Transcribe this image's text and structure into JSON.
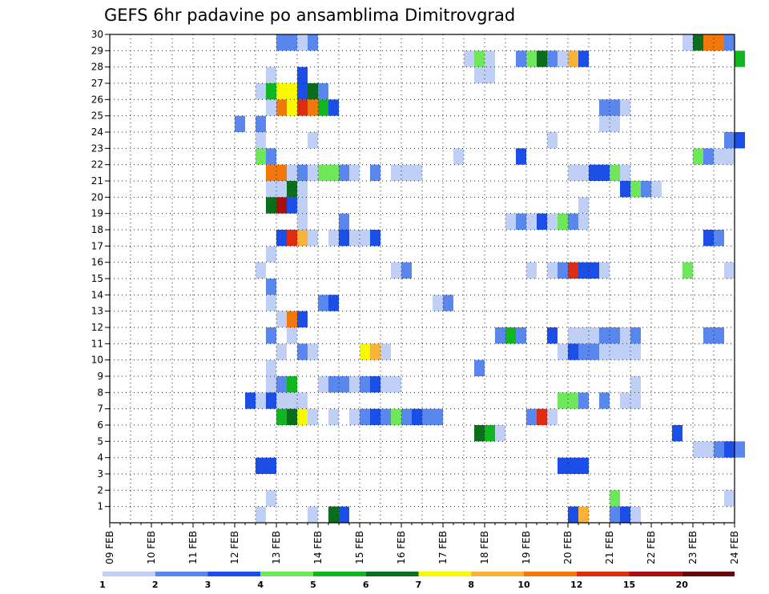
{
  "chart_data": {
    "type": "heatmap",
    "title": "GEFS 6hr padavine po ansamblima Dimitrovgrad",
    "xlabel": "",
    "ylabel": "",
    "x_ticks": [
      "09 FEB",
      "10 FEB",
      "11 FEB",
      "12 FEB",
      "13 FEB",
      "14 FEB",
      "15 FEB",
      "16 FEB",
      "17 FEB",
      "18 FEB",
      "19 FEB",
      "20 FEB",
      "21 FEB",
      "22 FEB",
      "23 FEB",
      "24 FEB"
    ],
    "y_ticks": [
      1,
      2,
      3,
      4,
      5,
      6,
      7,
      8,
      9,
      10,
      11,
      12,
      13,
      14,
      15,
      16,
      17,
      18,
      19,
      20,
      21,
      22,
      23,
      24,
      25,
      26,
      27,
      28,
      29,
      30
    ],
    "ylim": [
      0,
      30
    ],
    "grid": true,
    "time_step": "6hr",
    "levels": [
      1,
      2,
      3,
      4,
      5,
      6,
      7,
      8,
      10,
      12,
      15,
      20
    ],
    "level_labels": [
      "1",
      "2",
      "3",
      "4",
      "5",
      "6",
      "7",
      "8",
      "10",
      "12",
      "15",
      "20"
    ],
    "colors": [
      "#bfcff5",
      "#5a87ee",
      "#1a4ee6",
      "#6ee85a",
      "#10b620",
      "#0a6e1c",
      "#f8f800",
      "#f8b238",
      "#f2780c",
      "#de2c10",
      "#a80f0f",
      "#660808"
    ],
    "cells": [
      {
        "member": 30,
        "entries": [
          [
            "13 FEB 00",
            2
          ],
          [
            "13 FEB 06",
            2
          ],
          [
            "13 FEB 12",
            1
          ],
          [
            "13 FEB 18",
            2
          ],
          [
            "13 FEB 00",
            2
          ],
          [
            "22 FEB 18",
            1
          ],
          [
            "23 FEB 00",
            6
          ],
          [
            "23 FEB 06",
            9
          ],
          [
            "23 FEB 12",
            9
          ],
          [
            "23 FEB 18",
            2
          ]
        ]
      },
      {
        "member": 29,
        "entries": [
          [
            "17 FEB 12",
            1
          ],
          [
            "17 FEB 18",
            4
          ],
          [
            "18 FEB 00",
            1
          ],
          [
            "18 FEB 18",
            2
          ],
          [
            "19 FEB 00",
            4
          ],
          [
            "19 FEB 06",
            6
          ],
          [
            "19 FEB 12",
            2
          ],
          [
            "19 FEB 18",
            1
          ],
          [
            "20 FEB 00",
            8
          ],
          [
            "20 FEB 06",
            3
          ],
          [
            "24 FEB 00",
            5
          ]
        ]
      },
      {
        "member": 28,
        "entries": [
          [
            "12 FEB 18",
            1
          ],
          [
            "13 FEB 12",
            3
          ],
          [
            "17 FEB 18",
            1
          ],
          [
            "18 FEB 00",
            1
          ]
        ]
      },
      {
        "member": 27,
        "entries": [
          [
            "12 FEB 12",
            1
          ],
          [
            "12 FEB 18",
            5
          ],
          [
            "13 FEB 00",
            7
          ],
          [
            "13 FEB 06",
            7
          ],
          [
            "13 FEB 12",
            3
          ],
          [
            "13 FEB 18",
            6
          ],
          [
            "14 FEB 00",
            2
          ]
        ]
      },
      {
        "member": 26,
        "entries": [
          [
            "12 FEB 18",
            1
          ],
          [
            "13 FEB 00",
            9
          ],
          [
            "13 FEB 06",
            7
          ],
          [
            "13 FEB 12",
            10
          ],
          [
            "13 FEB 18",
            9
          ],
          [
            "14 FEB 00",
            5
          ],
          [
            "14 FEB 06",
            3
          ],
          [
            "20 FEB 18",
            2
          ],
          [
            "21 FEB 00",
            2
          ],
          [
            "21 FEB 06",
            1
          ]
        ]
      },
      {
        "member": 25,
        "entries": [
          [
            "12 FEB 00",
            2
          ],
          [
            "12 FEB 12",
            2
          ],
          [
            "20 FEB 18",
            1
          ],
          [
            "21 FEB 00",
            1
          ]
        ]
      },
      {
        "member": 24,
        "entries": [
          [
            "12 FEB 12",
            1
          ],
          [
            "13 FEB 18",
            1
          ],
          [
            "19 FEB 12",
            1
          ],
          [
            "23 FEB 18",
            2
          ],
          [
            "24 FEB 00",
            3
          ]
        ]
      },
      {
        "member": 23,
        "entries": [
          [
            "12 FEB 12",
            4
          ],
          [
            "12 FEB 18",
            2
          ],
          [
            "17 FEB 06",
            1
          ],
          [
            "18 FEB 18",
            3
          ],
          [
            "23 FEB 00",
            4
          ],
          [
            "23 FEB 06",
            2
          ],
          [
            "23 FEB 12",
            1
          ],
          [
            "23 FEB 18",
            1
          ]
        ]
      },
      {
        "member": 22,
        "entries": [
          [
            "12 FEB 18",
            9
          ],
          [
            "13 FEB 00",
            9
          ],
          [
            "13 FEB 06",
            1
          ],
          [
            "13 FEB 12",
            2
          ],
          [
            "13 FEB 18",
            1
          ],
          [
            "14 FEB 00",
            4
          ],
          [
            "14 FEB 06",
            4
          ],
          [
            "14 FEB 12",
            2
          ],
          [
            "14 FEB 18",
            1
          ],
          [
            "15 FEB 06",
            2
          ],
          [
            "15 FEB 18",
            1
          ],
          [
            "16 FEB 00",
            1
          ],
          [
            "16 FEB 06",
            1
          ],
          [
            "20 FEB 00",
            1
          ],
          [
            "20 FEB 06",
            1
          ],
          [
            "20 FEB 12",
            3
          ],
          [
            "20 FEB 18",
            3
          ],
          [
            "21 FEB 00",
            4
          ],
          [
            "21 FEB 06",
            1
          ]
        ]
      },
      {
        "member": 21,
        "entries": [
          [
            "12 FEB 18",
            1
          ],
          [
            "13 FEB 00",
            1
          ],
          [
            "13 FEB 06",
            6
          ],
          [
            "13 FEB 12",
            1
          ],
          [
            "21 FEB 06",
            3
          ],
          [
            "21 FEB 12",
            4
          ],
          [
            "21 FEB 18",
            2
          ],
          [
            "22 FEB 00",
            1
          ]
        ]
      },
      {
        "member": 20,
        "entries": [
          [
            "12 FEB 18",
            6
          ],
          [
            "13 FEB 00",
            11
          ],
          [
            "13 FEB 06",
            3
          ],
          [
            "13 FEB 12",
            1
          ],
          [
            "20 FEB 06",
            1
          ]
        ]
      },
      {
        "member": 19,
        "entries": [
          [
            "13 FEB 12",
            1
          ],
          [
            "14 FEB 12",
            2
          ],
          [
            "18 FEB 12",
            1
          ],
          [
            "18 FEB 18",
            2
          ],
          [
            "19 FEB 00",
            1
          ],
          [
            "19 FEB 06",
            3
          ],
          [
            "19 FEB 12",
            1
          ],
          [
            "19 FEB 18",
            4
          ],
          [
            "20 FEB 00",
            2
          ],
          [
            "20 FEB 06",
            1
          ]
        ]
      },
      {
        "member": 18,
        "entries": [
          [
            "13 FEB 00",
            3
          ],
          [
            "13 FEB 06",
            10
          ],
          [
            "13 FEB 12",
            8
          ],
          [
            "13 FEB 18",
            1
          ],
          [
            "14 FEB 06",
            1
          ],
          [
            "14 FEB 12",
            3
          ],
          [
            "14 FEB 18",
            1
          ],
          [
            "15 FEB 00",
            1
          ],
          [
            "15 FEB 06",
            3
          ],
          [
            "23 FEB 06",
            3
          ],
          [
            "23 FEB 12",
            2
          ]
        ]
      },
      {
        "member": 17,
        "entries": [
          [
            "12 FEB 18",
            1
          ]
        ]
      },
      {
        "member": 16,
        "entries": [
          [
            "12 FEB 12",
            1
          ],
          [
            "15 FEB 18",
            1
          ],
          [
            "16 FEB 00",
            2
          ],
          [
            "19 FEB 00",
            1
          ],
          [
            "19 FEB 12",
            1
          ],
          [
            "19 FEB 18",
            2
          ],
          [
            "20 FEB 00",
            10
          ],
          [
            "20 FEB 06",
            3
          ],
          [
            "20 FEB 12",
            3
          ],
          [
            "20 FEB 18",
            1
          ],
          [
            "22 FEB 18",
            4
          ],
          [
            "23 FEB 18",
            1
          ]
        ]
      },
      {
        "member": 15,
        "entries": [
          [
            "12 FEB 18",
            2
          ]
        ]
      },
      {
        "member": 14,
        "entries": [
          [
            "12 FEB 18",
            1
          ],
          [
            "14 FEB 00",
            2
          ],
          [
            "14 FEB 06",
            3
          ],
          [
            "16 FEB 18",
            1
          ],
          [
            "17 FEB 00",
            2
          ]
        ]
      },
      {
        "member": 13,
        "entries": [
          [
            "13 FEB 00",
            1
          ],
          [
            "13 FEB 06",
            9
          ],
          [
            "13 FEB 12",
            3
          ]
        ]
      },
      {
        "member": 12,
        "entries": [
          [
            "12 FEB 18",
            2
          ],
          [
            "13 FEB 06",
            1
          ],
          [
            "18 FEB 06",
            2
          ],
          [
            "18 FEB 12",
            5
          ],
          [
            "18 FEB 18",
            2
          ],
          [
            "19 FEB 12",
            3
          ],
          [
            "20 FEB 00",
            1
          ],
          [
            "20 FEB 06",
            1
          ],
          [
            "20 FEB 12",
            1
          ],
          [
            "20 FEB 18",
            2
          ],
          [
            "21 FEB 00",
            2
          ],
          [
            "21 FEB 06",
            1
          ],
          [
            "21 FEB 12",
            2
          ],
          [
            "23 FEB 06",
            2
          ],
          [
            "23 FEB 12",
            2
          ]
        ]
      },
      {
        "member": 11,
        "entries": [
          [
            "13 FEB 00",
            1
          ],
          [
            "13 FEB 12",
            2
          ],
          [
            "13 FEB 18",
            1
          ],
          [
            "15 FEB 00",
            7
          ],
          [
            "15 FEB 06",
            8
          ],
          [
            "15 FEB 12",
            1
          ],
          [
            "19 FEB 18",
            1
          ],
          [
            "20 FEB 00",
            3
          ],
          [
            "20 FEB 06",
            2
          ],
          [
            "20 FEB 12",
            2
          ],
          [
            "20 FEB 18",
            1
          ],
          [
            "21 FEB 00",
            1
          ],
          [
            "21 FEB 06",
            1
          ],
          [
            "21 FEB 12",
            1
          ]
        ]
      },
      {
        "member": 10,
        "entries": [
          [
            "12 FEB 18",
            1
          ],
          [
            "17 FEB 18",
            2
          ]
        ]
      },
      {
        "member": 9,
        "entries": [
          [
            "12 FEB 18",
            1
          ],
          [
            "13 FEB 00",
            2
          ],
          [
            "13 FEB 06",
            5
          ],
          [
            "14 FEB 00",
            1
          ],
          [
            "14 FEB 06",
            2
          ],
          [
            "14 FEB 12",
            2
          ],
          [
            "14 FEB 18",
            1
          ],
          [
            "15 FEB 00",
            2
          ],
          [
            "15 FEB 06",
            3
          ],
          [
            "15 FEB 12",
            1
          ],
          [
            "15 FEB 18",
            1
          ],
          [
            "21 FEB 12",
            1
          ]
        ]
      },
      {
        "member": 8,
        "entries": [
          [
            "12 FEB 06",
            3
          ],
          [
            "12 FEB 12",
            1
          ],
          [
            "12 FEB 18",
            3
          ],
          [
            "13 FEB 00",
            1
          ],
          [
            "13 FEB 06",
            1
          ],
          [
            "13 FEB 12",
            1
          ],
          [
            "19 FEB 18",
            4
          ],
          [
            "20 FEB 00",
            4
          ],
          [
            "20 FEB 06",
            2
          ],
          [
            "20 FEB 18",
            2
          ],
          [
            "21 FEB 06",
            1
          ],
          [
            "21 FEB 12",
            1
          ]
        ]
      },
      {
        "member": 7,
        "entries": [
          [
            "13 FEB 00",
            5
          ],
          [
            "13 FEB 06",
            6
          ],
          [
            "13 FEB 12",
            7
          ],
          [
            "13 FEB 18",
            1
          ],
          [
            "14 FEB 06",
            1
          ],
          [
            "14 FEB 18",
            1
          ],
          [
            "15 FEB 00",
            2
          ],
          [
            "15 FEB 06",
            3
          ],
          [
            "15 FEB 12",
            2
          ],
          [
            "15 FEB 18",
            4
          ],
          [
            "16 FEB 00",
            2
          ],
          [
            "16 FEB 06",
            3
          ],
          [
            "16 FEB 12",
            2
          ],
          [
            "16 FEB 18",
            2
          ],
          [
            "19 FEB 00",
            2
          ],
          [
            "19 FEB 06",
            10
          ],
          [
            "19 FEB 12",
            1
          ]
        ]
      },
      {
        "member": 6,
        "entries": [
          [
            "17 FEB 18",
            6
          ],
          [
            "18 FEB 00",
            5
          ],
          [
            "18 FEB 06",
            1
          ],
          [
            "22 FEB 12",
            3
          ]
        ]
      },
      {
        "member": 5,
        "entries": [
          [
            "23 FEB 00",
            1
          ],
          [
            "23 FEB 06",
            1
          ],
          [
            "23 FEB 12",
            2
          ],
          [
            "23 FEB 18",
            3
          ],
          [
            "24 FEB 00",
            2
          ]
        ]
      },
      {
        "member": 4,
        "entries": [
          [
            "12 FEB 12",
            3
          ],
          [
            "12 FEB 18",
            3
          ],
          [
            "19 FEB 18",
            3
          ],
          [
            "20 FEB 00",
            3
          ],
          [
            "20 FEB 06",
            3
          ]
        ]
      },
      {
        "member": 3,
        "entries": []
      },
      {
        "member": 2,
        "entries": [
          [
            "12 FEB 18",
            1
          ],
          [
            "21 FEB 00",
            4
          ],
          [
            "23 FEB 18",
            1
          ]
        ]
      },
      {
        "member": 1,
        "entries": [
          [
            "12 FEB 12",
            1
          ],
          [
            "13 FEB 18",
            1
          ],
          [
            "14 FEB 06",
            6
          ],
          [
            "14 FEB 12",
            3
          ],
          [
            "20 FEB 00",
            3
          ],
          [
            "20 FEB 06",
            8
          ],
          [
            "21 FEB 00",
            2
          ],
          [
            "21 FEB 06",
            3
          ],
          [
            "21 FEB 12",
            1
          ]
        ]
      }
    ]
  }
}
